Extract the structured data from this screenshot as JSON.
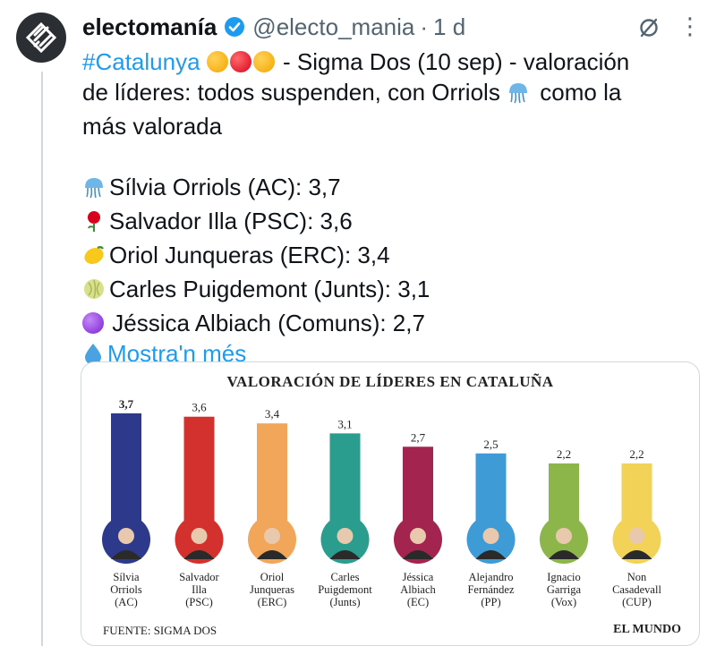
{
  "account": {
    "name": "electomanía",
    "handle": "@electo_mania",
    "separator": "·",
    "time": "1 d"
  },
  "icons": {
    "avatar": "electomania-logo-icon",
    "verified": "verified-badge-icon",
    "grok": "grok-icon",
    "more": "more-icon"
  },
  "colors": {
    "accent": "#1d9bf0",
    "verified": "#1d9bf0",
    "muted": "#536471"
  },
  "tweet": {
    "hashtag": "#Catalunya",
    "line1_rest": " - Sigma Dos (10 sep) - valoración",
    "line2_a": "de líderes: todos suspenden, con Orriols ",
    "line2_b": " como la",
    "line3": "más valorada",
    "items": [
      {
        "emoji": "jellyfish",
        "text": "Sílvia Orriols (AC): 3,7"
      },
      {
        "emoji": "rose",
        "text": "Salvador Illa (PSC): 3,6"
      },
      {
        "emoji": "lemon",
        "text": "Oriol Junqueras (ERC): 3,4"
      },
      {
        "emoji": "melon",
        "text": "Carles Puigdemont (Junts): 3,1"
      },
      {
        "emoji": "purple-circle",
        "text": "Jéssica Albiach (Comuns): 2,7"
      }
    ],
    "show_more": "Mostra'n més"
  },
  "chart_data": {
    "type": "bar",
    "title": "VALORACIÓN DE LÍDERES EN CATALUÑA",
    "categories": [
      [
        "Sílvia",
        "Orriols",
        "(AC)"
      ],
      [
        "Salvador",
        "Illa",
        "(PSC)"
      ],
      [
        "Oriol",
        "Junqueras",
        "(ERC)"
      ],
      [
        "Carles",
        "Puigdemont",
        "(Junts)"
      ],
      [
        "Jéssica",
        "Albiach",
        "(EC)"
      ],
      [
        "Alejandro",
        "Fernández",
        "(PP)"
      ],
      [
        "Ignacio",
        "Garriga",
        "(Vox)"
      ],
      [
        "Non",
        "Casadevall",
        "(CUP)"
      ]
    ],
    "values": [
      3.7,
      3.6,
      3.4,
      3.1,
      2.7,
      2.5,
      2.2,
      2.2
    ],
    "value_labels": [
      "3,7",
      "3,6",
      "3,4",
      "3,1",
      "2,7",
      "2,5",
      "2,2",
      "2,2"
    ],
    "colors": [
      "#2d3a8c",
      "#d3312d",
      "#f2a65a",
      "#2a9d8f",
      "#a3244f",
      "#3f9bd6",
      "#8cb64a",
      "#f2d357"
    ],
    "ylim": [
      0,
      3.7
    ],
    "source": "FUENTE: SIGMA DOS",
    "publisher": "EL MUNDO"
  }
}
